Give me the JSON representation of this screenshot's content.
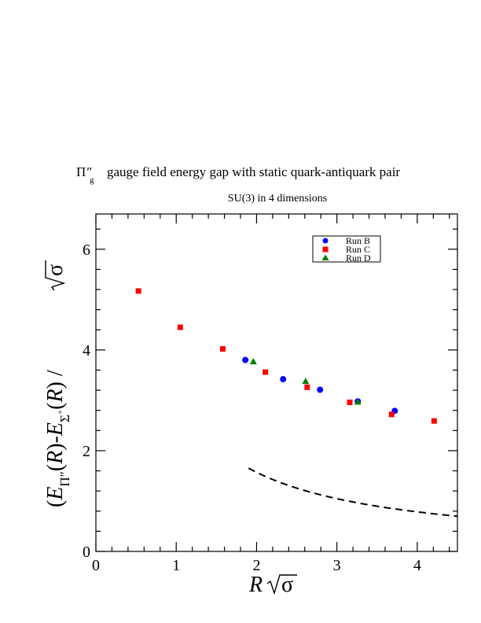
{
  "chart_data": {
    "type": "scatter",
    "title_symbol": "Π",
    "title_symbol_prime": "″",
    "title_symbol_sub": "g",
    "title_text": "gauge field energy gap with static quark-antiquark pair",
    "subtitle": "SU(3) in 4 dimensions",
    "xlabel": "R √σ",
    "ylabel": "(E_{Π″g}(R) - E_{Σ+g}(R)) / √σ",
    "xlim": [
      0,
      4.5
    ],
    "ylim": [
      0,
      6.7
    ],
    "x_ticks": [
      "0",
      "1",
      "2",
      "3",
      "4"
    ],
    "y_ticks": [
      "0",
      "2",
      "4",
      "6"
    ],
    "x_major_step": 1,
    "x_minor_step": 0.2,
    "y_major_step": 2,
    "y_minor_step": 0.4,
    "grid": false,
    "legend_position": "top-right",
    "series": [
      {
        "name": "Run B",
        "marker": "circle",
        "color": "#0000ff",
        "points": [
          {
            "x": 1.86,
            "y": 3.8
          },
          {
            "x": 2.33,
            "y": 3.42
          },
          {
            "x": 2.79,
            "y": 3.21
          },
          {
            "x": 3.26,
            "y": 2.98
          },
          {
            "x": 3.72,
            "y": 2.79
          }
        ]
      },
      {
        "name": "Run C",
        "marker": "square",
        "color": "#ff0000",
        "points": [
          {
            "x": 0.53,
            "y": 5.17
          },
          {
            "x": 1.05,
            "y": 4.45
          },
          {
            "x": 1.58,
            "y": 4.02
          },
          {
            "x": 2.11,
            "y": 3.56
          },
          {
            "x": 2.63,
            "y": 3.26
          },
          {
            "x": 3.16,
            "y": 2.96
          },
          {
            "x": 3.68,
            "y": 2.72
          },
          {
            "x": 4.21,
            "y": 2.59
          }
        ]
      },
      {
        "name": "Run D",
        "marker": "triangle",
        "color": "#008000",
        "points": [
          {
            "x": 1.96,
            "y": 3.77
          },
          {
            "x": 2.61,
            "y": 3.38
          },
          {
            "x": 3.26,
            "y": 2.97
          }
        ]
      }
    ],
    "reference_curve": {
      "style": "dashed",
      "color": "#000000",
      "formula": "pi / x",
      "x_start": 1.9,
      "x_end": 4.5
    }
  }
}
